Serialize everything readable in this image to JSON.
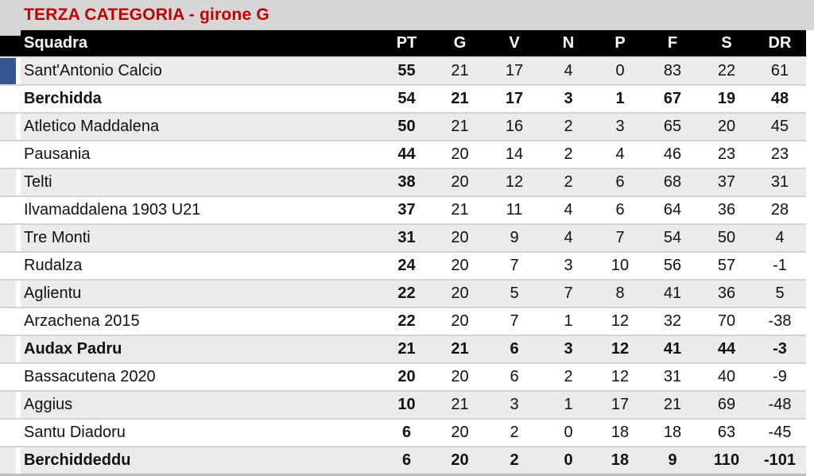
{
  "title": "TERZA CATEGORIA - girone G",
  "colors": {
    "title_red": "#c00000",
    "title_band_gray": "#d6d6d6",
    "header_bg": "#000000",
    "header_text": "#ffffff",
    "stripe_gray": "#ebebeb",
    "stripe_white": "#ffffff",
    "grid_line": "#d3d3d3",
    "leader_marker_blue": "#34568f"
  },
  "table": {
    "columns": [
      "Squadra",
      "PT",
      "G",
      "V",
      "N",
      "P",
      "F",
      "S",
      "DR"
    ],
    "rows": [
      {
        "team": "Sant'Antonio Calcio",
        "pt": 55,
        "g": 21,
        "v": 17,
        "n": 4,
        "p": 0,
        "f": 83,
        "s": 22,
        "dr": 61,
        "bold": false,
        "marker": true
      },
      {
        "team": "Berchidda",
        "pt": 54,
        "g": 21,
        "v": 17,
        "n": 3,
        "p": 1,
        "f": 67,
        "s": 19,
        "dr": 48,
        "bold": true,
        "marker": false
      },
      {
        "team": "Atletico Maddalena",
        "pt": 50,
        "g": 21,
        "v": 16,
        "n": 2,
        "p": 3,
        "f": 65,
        "s": 20,
        "dr": 45,
        "bold": false,
        "marker": false
      },
      {
        "team": "Pausania",
        "pt": 44,
        "g": 20,
        "v": 14,
        "n": 2,
        "p": 4,
        "f": 46,
        "s": 23,
        "dr": 23,
        "bold": false,
        "marker": false
      },
      {
        "team": "Telti",
        "pt": 38,
        "g": 20,
        "v": 12,
        "n": 2,
        "p": 6,
        "f": 68,
        "s": 37,
        "dr": 31,
        "bold": false,
        "marker": false
      },
      {
        "team": "Ilvamaddalena 1903 U21",
        "pt": 37,
        "g": 21,
        "v": 11,
        "n": 4,
        "p": 6,
        "f": 64,
        "s": 36,
        "dr": 28,
        "bold": false,
        "marker": false
      },
      {
        "team": "Tre Monti",
        "pt": 31,
        "g": 20,
        "v": 9,
        "n": 4,
        "p": 7,
        "f": 54,
        "s": 50,
        "dr": 4,
        "bold": false,
        "marker": false
      },
      {
        "team": "Rudalza",
        "pt": 24,
        "g": 20,
        "v": 7,
        "n": 3,
        "p": 10,
        "f": 56,
        "s": 57,
        "dr": -1,
        "bold": false,
        "marker": false
      },
      {
        "team": "Aglientu",
        "pt": 22,
        "g": 20,
        "v": 5,
        "n": 7,
        "p": 8,
        "f": 41,
        "s": 36,
        "dr": 5,
        "bold": false,
        "marker": false
      },
      {
        "team": "Arzachena 2015",
        "pt": 22,
        "g": 20,
        "v": 7,
        "n": 1,
        "p": 12,
        "f": 32,
        "s": 70,
        "dr": -38,
        "bold": false,
        "marker": false
      },
      {
        "team": "Audax Padru",
        "pt": 21,
        "g": 21,
        "v": 6,
        "n": 3,
        "p": 12,
        "f": 41,
        "s": 44,
        "dr": -3,
        "bold": true,
        "marker": false
      },
      {
        "team": "Bassacutena 2020",
        "pt": 20,
        "g": 20,
        "v": 6,
        "n": 2,
        "p": 12,
        "f": 31,
        "s": 40,
        "dr": -9,
        "bold": false,
        "marker": false
      },
      {
        "team": "Aggius",
        "pt": 10,
        "g": 21,
        "v": 3,
        "n": 1,
        "p": 17,
        "f": 21,
        "s": 69,
        "dr": -48,
        "bold": false,
        "marker": false
      },
      {
        "team": "Santu Diadoru",
        "pt": 6,
        "g": 20,
        "v": 2,
        "n": 0,
        "p": 18,
        "f": 18,
        "s": 63,
        "dr": -45,
        "bold": false,
        "marker": false
      },
      {
        "team": "Berchiddeddu",
        "pt": 6,
        "g": 20,
        "v": 2,
        "n": 0,
        "p": 18,
        "f": 9,
        "s": 110,
        "dr": -101,
        "bold": true,
        "marker": false
      }
    ]
  },
  "chart_data": {
    "type": "table",
    "title": "TERZA CATEGORIA - girone G",
    "columns": [
      "Squadra",
      "PT",
      "G",
      "V",
      "N",
      "P",
      "F",
      "S",
      "DR"
    ],
    "rows": [
      [
        "Sant'Antonio Calcio",
        55,
        21,
        17,
        4,
        0,
        83,
        22,
        61
      ],
      [
        "Berchidda",
        54,
        21,
        17,
        3,
        1,
        67,
        19,
        48
      ],
      [
        "Atletico Maddalena",
        50,
        21,
        16,
        2,
        3,
        65,
        20,
        45
      ],
      [
        "Pausania",
        44,
        20,
        14,
        2,
        4,
        46,
        23,
        23
      ],
      [
        "Telti",
        38,
        20,
        12,
        2,
        6,
        68,
        37,
        31
      ],
      [
        "Ilvamaddalena 1903 U21",
        37,
        21,
        11,
        4,
        6,
        64,
        36,
        28
      ],
      [
        "Tre Monti",
        31,
        20,
        9,
        4,
        7,
        54,
        50,
        4
      ],
      [
        "Rudalza",
        24,
        20,
        7,
        3,
        10,
        56,
        57,
        -1
      ],
      [
        "Aglientu",
        22,
        20,
        5,
        7,
        8,
        41,
        36,
        5
      ],
      [
        "Arzachena 2015",
        22,
        20,
        7,
        1,
        12,
        32,
        70,
        -38
      ],
      [
        "Audax Padru",
        21,
        21,
        6,
        3,
        12,
        41,
        44,
        -3
      ],
      [
        "Bassacutena 2020",
        20,
        20,
        6,
        2,
        12,
        31,
        40,
        -9
      ],
      [
        "Aggius",
        10,
        21,
        3,
        1,
        17,
        21,
        69,
        -48
      ],
      [
        "Santu Diadoru",
        6,
        20,
        2,
        0,
        18,
        18,
        63,
        -45
      ],
      [
        "Berchiddeddu",
        6,
        20,
        2,
        0,
        18,
        9,
        110,
        -101
      ]
    ]
  }
}
